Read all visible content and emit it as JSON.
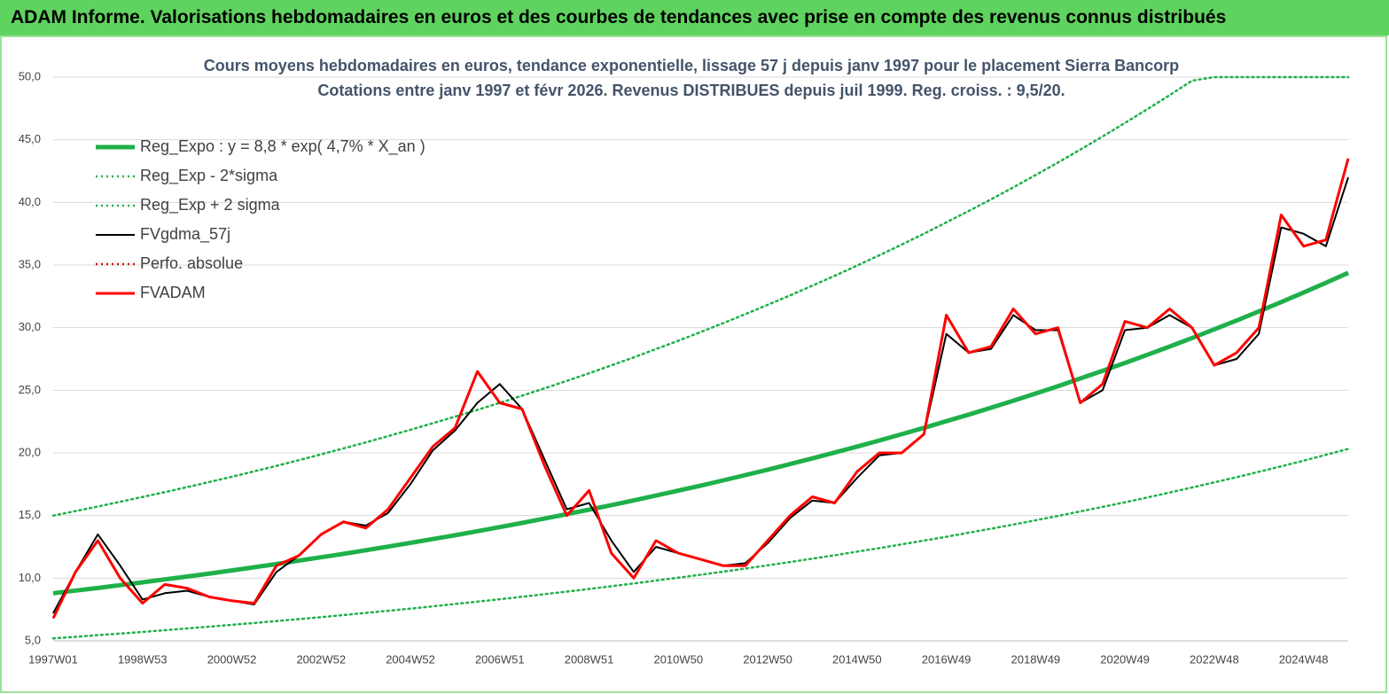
{
  "header": {
    "title": "ADAM Informe. Valorisations hebdomadaires en euros et des courbes de tendances avec prise en compte des revenus connus distribués"
  },
  "chart_data": {
    "type": "line",
    "title": "Cours moyens hebdomadaires en euros, tendance exponentielle, lissage 57 j depuis janv 1997 pour le placement Sierra Bancorp",
    "subtitle": "Cotations entre janv 1997 et févr 2026. Revenus DISTRIBUES depuis juil 1999. Reg. croiss. : 9,5/20.",
    "categories": [
      "1997W01",
      null,
      null,
      null,
      "1998W53",
      null,
      null,
      null,
      "2000W52",
      null,
      null,
      null,
      "2002W52",
      null,
      null,
      null,
      "2004W52",
      null,
      null,
      null,
      "2006W51",
      null,
      null,
      null,
      "2008W51",
      null,
      null,
      null,
      "2010W50",
      null,
      null,
      null,
      "2012W50",
      null,
      null,
      null,
      "2014W50",
      null,
      null,
      null,
      "2016W49",
      null,
      null,
      null,
      "2018W49",
      null,
      null,
      null,
      "2020W49",
      null,
      null,
      null,
      "2022W48",
      null,
      null,
      null,
      "2024W48",
      null,
      null
    ],
    "ylim": [
      5,
      50
    ],
    "yticks": [
      {
        "value": 5,
        "label": "5,0"
      },
      {
        "value": 10,
        "label": "10,0"
      },
      {
        "value": 15,
        "label": "15,0"
      },
      {
        "value": 20,
        "label": "20,0"
      },
      {
        "value": 25,
        "label": "25,0"
      },
      {
        "value": 30,
        "label": "30,0"
      },
      {
        "value": 35,
        "label": "35,0"
      },
      {
        "value": 40,
        "label": "40,0"
      },
      {
        "value": 45,
        "label": "45,0"
      },
      {
        "value": 50,
        "label": "50,0"
      }
    ],
    "grid": true,
    "legend": "top-left",
    "series": [
      {
        "name": "Reg_Expo : y = 8,8 * exp( 4,7% *  X_an )",
        "color": "#1fb04a",
        "style": "thick",
        "values": [
          8.8,
          9.01,
          9.22,
          9.44,
          9.67,
          9.9,
          10.13,
          10.37,
          10.62,
          10.87,
          11.13,
          11.4,
          11.67,
          11.94,
          12.23,
          12.52,
          12.82,
          13.12,
          13.43,
          13.75,
          14.08,
          14.41,
          14.76,
          15.11,
          15.47,
          15.83,
          16.21,
          16.6,
          16.99,
          17.39,
          17.81,
          18.23,
          18.66,
          19.11,
          19.56,
          20.03,
          20.5,
          20.99,
          21.49,
          22.0,
          22.53,
          23.06,
          23.61,
          24.17,
          24.74,
          25.33,
          25.94,
          26.55,
          27.18,
          27.83,
          28.49,
          29.17,
          29.86,
          30.57,
          31.3,
          32.04,
          32.8,
          33.58,
          34.38
        ]
      },
      {
        "name": "Reg_Exp - 2*sigma",
        "color": "#1fb04a",
        "style": "dotted",
        "values": [
          5.2,
          5.32,
          5.45,
          5.58,
          5.71,
          5.85,
          5.99,
          6.13,
          6.28,
          6.42,
          6.58,
          6.73,
          6.89,
          7.06,
          7.23,
          7.4,
          7.57,
          7.75,
          7.94,
          8.13,
          8.32,
          8.52,
          8.72,
          8.93,
          9.14,
          9.36,
          9.58,
          9.81,
          10.04,
          10.28,
          10.52,
          10.77,
          11.03,
          11.29,
          11.56,
          11.83,
          12.12,
          12.4,
          12.7,
          13.0,
          13.31,
          13.63,
          13.95,
          14.28,
          14.62,
          14.97,
          15.33,
          15.69,
          16.06,
          16.44,
          16.84,
          17.24,
          17.65,
          18.06,
          18.49,
          18.93,
          19.38,
          19.85,
          20.32
        ]
      },
      {
        "name": "Reg_Exp + 2 sigma",
        "color": "#1fb04a",
        "style": "dotted",
        "values": [
          15.0,
          15.36,
          15.72,
          16.1,
          16.48,
          16.87,
          17.27,
          17.68,
          18.1,
          18.53,
          18.97,
          19.42,
          19.89,
          20.36,
          20.84,
          21.34,
          21.85,
          22.37,
          22.9,
          23.44,
          24.0,
          24.57,
          25.15,
          25.75,
          26.36,
          26.99,
          27.63,
          28.29,
          28.96,
          29.65,
          30.36,
          31.08,
          31.82,
          32.57,
          33.35,
          34.14,
          34.95,
          35.78,
          36.63,
          37.5,
          38.4,
          39.31,
          40.24,
          41.2,
          42.18,
          43.18,
          44.21,
          45.26,
          46.34,
          47.44,
          48.56,
          49.72,
          50,
          50,
          50,
          50,
          50,
          50,
          50
        ]
      },
      {
        "name": "FVgdma_57j",
        "color": "#000000",
        "style": "solid",
        "values": [
          7.2,
          10.5,
          13.5,
          11.0,
          8.3,
          8.8,
          9.0,
          8.5,
          8.2,
          7.9,
          10.5,
          11.8,
          13.5,
          14.5,
          14.2,
          15.2,
          17.5,
          20.2,
          21.8,
          24.0,
          25.5,
          23.5,
          19.5,
          15.5,
          16.0,
          13.0,
          10.5,
          12.5,
          12.0,
          11.5,
          11.0,
          11.2,
          12.8,
          14.8,
          16.2,
          16.0,
          18.0,
          19.8,
          20.0,
          21.5,
          29.5,
          28.0,
          28.3,
          31.0,
          29.8,
          29.8,
          24.0,
          25.0,
          29.8,
          30.0,
          31.0,
          30.0,
          27.0,
          27.5,
          29.5,
          38.0,
          37.5,
          36.5,
          42.0
        ]
      },
      {
        "name": "Perfo. absolue",
        "color": "#e00000",
        "style": "dotted",
        "values": [
          null,
          null,
          null,
          null,
          null,
          null,
          null,
          null,
          null,
          null,
          null,
          null,
          null,
          null,
          null,
          null,
          null,
          null,
          null,
          null,
          null,
          null,
          null,
          null,
          null,
          null,
          null,
          null,
          null,
          null,
          null,
          null,
          null,
          null,
          null,
          null,
          null,
          null,
          null,
          null,
          null,
          null,
          null,
          null,
          null,
          null,
          null,
          null,
          null,
          null,
          null,
          null,
          null,
          null,
          null,
          null,
          null,
          null,
          null
        ]
      },
      {
        "name": "FVADAM",
        "color": "#ff0000",
        "style": "red",
        "values": [
          6.8,
          10.5,
          13.0,
          10.0,
          8.0,
          9.5,
          9.2,
          8.5,
          8.2,
          8.0,
          11.0,
          11.8,
          13.5,
          14.5,
          14.0,
          15.5,
          18.0,
          20.5,
          22.0,
          26.5,
          24.0,
          23.5,
          19.0,
          15.0,
          17.0,
          12.0,
          10.0,
          13.0,
          12.0,
          11.5,
          11.0,
          11.0,
          13.0,
          15.0,
          16.5,
          16.0,
          18.5,
          20.0,
          20.0,
          21.5,
          31.0,
          28.0,
          28.5,
          31.5,
          29.5,
          30.0,
          24.0,
          25.5,
          30.5,
          30.0,
          31.5,
          30.0,
          27.0,
          28.0,
          30.0,
          39.0,
          36.5,
          37.0,
          43.5
        ]
      }
    ]
  }
}
